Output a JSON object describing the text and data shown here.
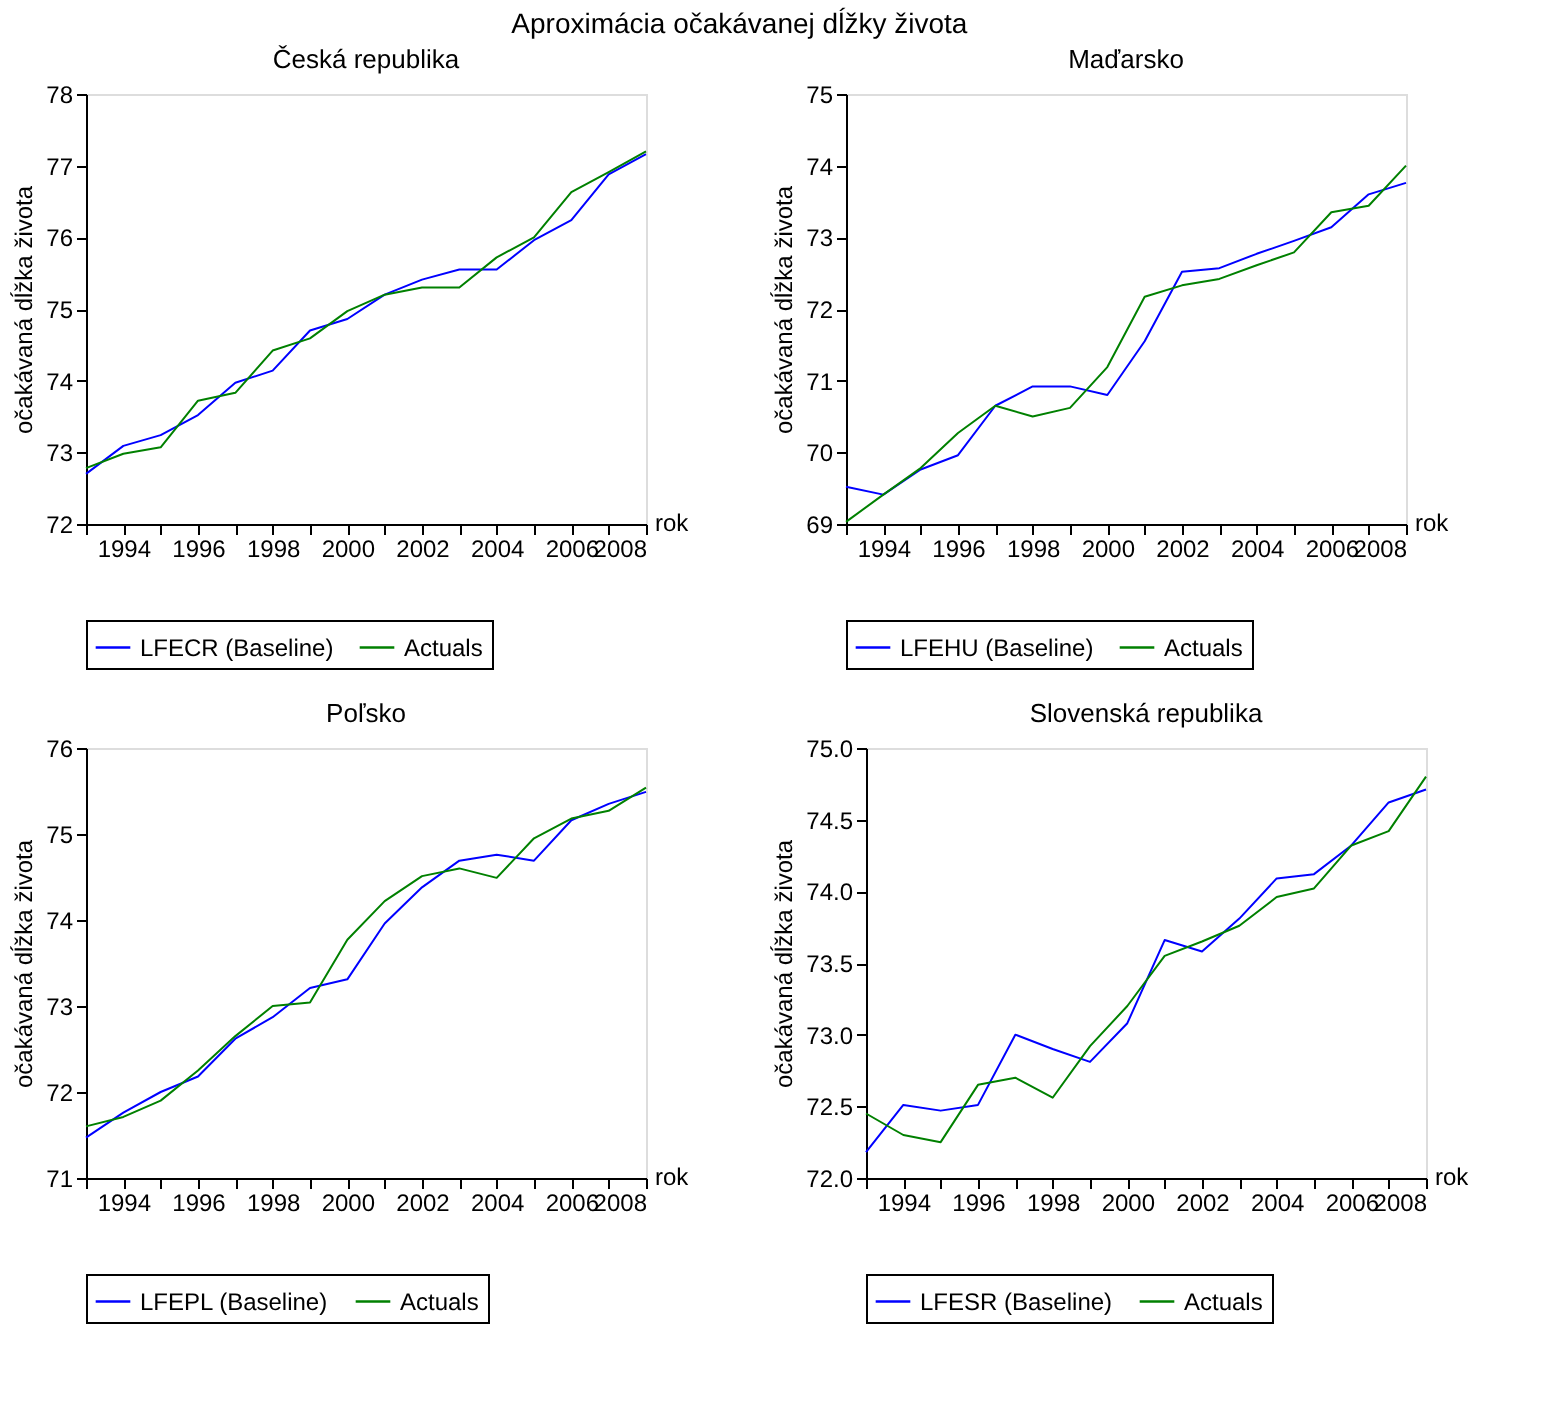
{
  "chart_data": [
    {
      "type": "other",
      "title": "Aproximácia očakávanej dĺžky života"
    },
    {
      "type": "line",
      "title": "Česká republika",
      "xlabel": "rok",
      "ylabel": "očakávaná dĺžka života",
      "x": [
        1993,
        1994,
        1995,
        1996,
        1997,
        1998,
        1999,
        2000,
        2001,
        2002,
        2003,
        2004,
        2005,
        2006,
        2007,
        2008
      ],
      "xlim": [
        1993,
        2008
      ],
      "xticks": [
        {
          "value": 1993,
          "label": null
        },
        1994,
        {
          "value": 1995,
          "label": null
        },
        1996,
        {
          "value": 1997,
          "label": null
        },
        1998,
        {
          "value": 1999,
          "label": null
        },
        2000,
        {
          "value": 2001,
          "label": null
        },
        2002,
        {
          "value": 2003,
          "label": null
        },
        2004,
        {
          "value": 2005,
          "label": null
        },
        2006,
        {
          "value": 2007,
          "label": null
        },
        2008
      ],
      "ylim": [
        72,
        78
      ],
      "yticks": [
        72,
        73,
        74,
        75,
        76,
        77,
        78
      ],
      "grid": false,
      "legend": "bottom",
      "series": [
        {
          "name": "LFECR (Baseline)",
          "color": "#0000ff",
          "values": [
            72.7,
            73.09,
            73.24,
            73.52,
            73.97,
            74.14,
            74.7,
            74.86,
            75.2,
            75.41,
            75.55,
            75.55,
            75.96,
            76.24,
            76.88,
            77.16
          ]
        },
        {
          "name": "Actuals",
          "color": "#008000",
          "values": [
            72.78,
            72.98,
            73.07,
            73.72,
            73.83,
            74.42,
            74.59,
            74.97,
            75.2,
            75.3,
            75.3,
            75.72,
            76.0,
            76.63,
            76.91,
            77.2
          ]
        }
      ]
    },
    {
      "type": "line",
      "title": "Maďarsko",
      "xlabel": "rok",
      "ylabel": "očakávaná dĺžka života",
      "x": [
        1993,
        1994,
        1995,
        1996,
        1997,
        1998,
        1999,
        2000,
        2001,
        2002,
        2003,
        2004,
        2005,
        2006,
        2007,
        2008
      ],
      "xlim": [
        1993,
        2008
      ],
      "xticks": [
        {
          "value": 1993,
          "label": null
        },
        1994,
        {
          "value": 1995,
          "label": null
        },
        1996,
        {
          "value": 1997,
          "label": null
        },
        1998,
        {
          "value": 1999,
          "label": null
        },
        2000,
        {
          "value": 2001,
          "label": null
        },
        2002,
        {
          "value": 2003,
          "label": null
        },
        2004,
        {
          "value": 2005,
          "label": null
        },
        2006,
        {
          "value": 2007,
          "label": null
        },
        2008
      ],
      "ylim": [
        69,
        75
      ],
      "yticks": [
        69,
        70,
        71,
        72,
        73,
        74,
        75
      ],
      "grid": false,
      "legend": "bottom",
      "series": [
        {
          "name": "LFEHU (Baseline)",
          "color": "#0000ff",
          "values": [
            69.52,
            69.41,
            69.76,
            69.96,
            70.65,
            70.92,
            70.92,
            70.8,
            71.55,
            72.52,
            72.57,
            72.77,
            72.95,
            73.14,
            73.6,
            73.76
          ]
        },
        {
          "name": "Actuals",
          "color": "#008000",
          "values": [
            69.03,
            69.41,
            69.78,
            70.27,
            70.65,
            70.5,
            70.62,
            71.19,
            72.17,
            72.33,
            72.42,
            72.61,
            72.79,
            73.35,
            73.44,
            74.0
          ]
        }
      ]
    },
    {
      "type": "line",
      "title": "Poľsko",
      "xlabel": "rok",
      "ylabel": "očakávaná dĺžka života",
      "x": [
        1993,
        1994,
        1995,
        1996,
        1997,
        1998,
        1999,
        2000,
        2001,
        2002,
        2003,
        2004,
        2005,
        2006,
        2007,
        2008
      ],
      "xlim": [
        1993,
        2008
      ],
      "xticks": [
        {
          "value": 1993,
          "label": null
        },
        1994,
        {
          "value": 1995,
          "label": null
        },
        1996,
        {
          "value": 1997,
          "label": null
        },
        1998,
        {
          "value": 1999,
          "label": null
        },
        2000,
        {
          "value": 2001,
          "label": null
        },
        2002,
        {
          "value": 2003,
          "label": null
        },
        2004,
        {
          "value": 2005,
          "label": null
        },
        2006,
        {
          "value": 2007,
          "label": null
        },
        2008
      ],
      "ylim": [
        71,
        76
      ],
      "yticks": [
        71,
        72,
        73,
        74,
        75,
        76
      ],
      "grid": false,
      "legend": "bottom",
      "series": [
        {
          "name": "LFEPL (Baseline)",
          "color": "#0000ff",
          "values": [
            71.47,
            71.76,
            72.0,
            72.18,
            72.62,
            72.87,
            73.21,
            73.31,
            73.96,
            74.38,
            74.69,
            74.76,
            74.69,
            75.16,
            75.35,
            75.49
          ]
        },
        {
          "name": "Actuals",
          "color": "#008000",
          "values": [
            71.6,
            71.71,
            71.9,
            72.25,
            72.65,
            73.0,
            73.04,
            73.77,
            74.22,
            74.51,
            74.6,
            74.49,
            74.95,
            75.18,
            75.27,
            75.54
          ]
        }
      ]
    },
    {
      "type": "line",
      "title": "Slovenská republika",
      "xlabel": "rok",
      "ylabel": "očakávaná dĺžka života",
      "x": [
        1993,
        1994,
        1995,
        1996,
        1997,
        1998,
        1999,
        2000,
        2001,
        2002,
        2003,
        2004,
        2005,
        2006,
        2007,
        2008
      ],
      "xlim": [
        1993,
        2008
      ],
      "xticks": [
        {
          "value": 1993,
          "label": null
        },
        1994,
        {
          "value": 1995,
          "label": null
        },
        1996,
        {
          "value": 1997,
          "label": null
        },
        1998,
        {
          "value": 1999,
          "label": null
        },
        2000,
        {
          "value": 2001,
          "label": null
        },
        2002,
        {
          "value": 2003,
          "label": null
        },
        2004,
        {
          "value": 2005,
          "label": null
        },
        2006,
        {
          "value": 2007,
          "label": null
        },
        2008
      ],
      "ylim": [
        72,
        75
      ],
      "yticks": [
        {
          "value": 72,
          "label": "72.0"
        },
        {
          "value": 72.5,
          "label": "72.5"
        },
        {
          "value": 73,
          "label": "73.0"
        },
        {
          "value": 73.5,
          "label": "73.5"
        },
        {
          "value": 74,
          "label": "74.0"
        },
        {
          "value": 74.5,
          "label": "74.5"
        },
        {
          "value": 75,
          "label": "75.0"
        }
      ],
      "grid": false,
      "legend": "bottom",
      "series": [
        {
          "name": "LFESR (Baseline)",
          "color": "#0000ff",
          "values": [
            72.18,
            72.51,
            72.47,
            72.51,
            73.0,
            72.9,
            72.81,
            73.08,
            73.66,
            73.58,
            73.81,
            74.09,
            74.12,
            74.32,
            74.62,
            74.71
          ]
        },
        {
          "name": "Actuals",
          "color": "#008000",
          "values": [
            72.45,
            72.3,
            72.25,
            72.65,
            72.7,
            72.56,
            72.92,
            73.2,
            73.55,
            73.65,
            73.76,
            73.96,
            74.02,
            74.32,
            74.42,
            74.8
          ]
        }
      ]
    }
  ]
}
